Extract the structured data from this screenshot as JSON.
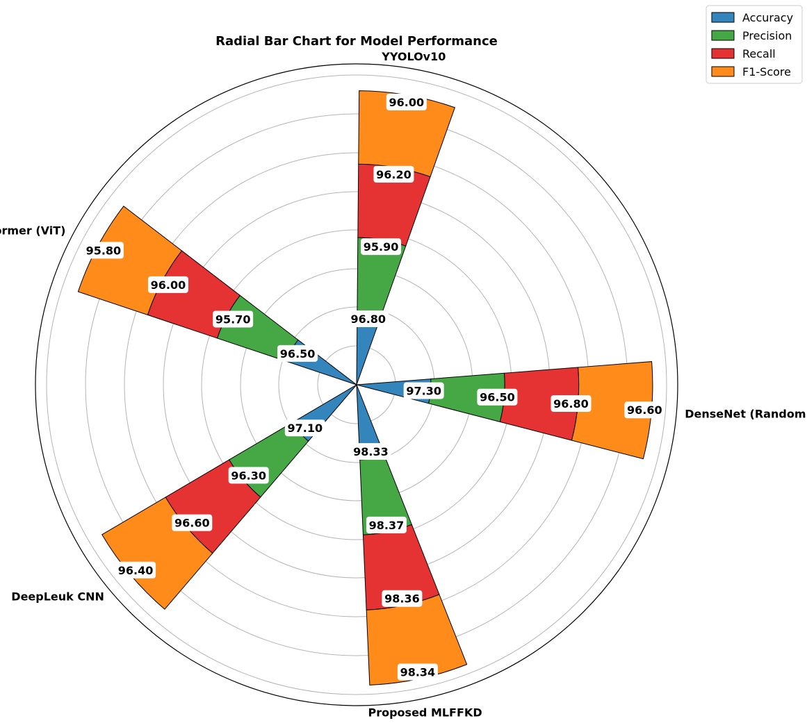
{
  "chart_data": {
    "type": "bar",
    "polar": true,
    "stacked": true,
    "title": "Radial Bar Chart for Model Performance",
    "categories": [
      "DenseNet (Random Search)",
      "YYOLOv10",
      "Vision Transformer (ViT)",
      "DeepLeuk CNN",
      "Proposed MLFFKD"
    ],
    "category_angles_deg": [
      -5,
      80,
      152,
      220,
      282
    ],
    "series": [
      {
        "name": "Accuracy",
        "values": [
          97.3,
          96.8,
          96.5,
          97.1,
          98.33
        ]
      },
      {
        "name": "Precision",
        "values": [
          96.5,
          95.9,
          95.7,
          96.3,
          98.37
        ]
      },
      {
        "name": "Recall",
        "values": [
          96.8,
          96.2,
          96.0,
          96.6,
          98.36
        ]
      },
      {
        "name": "F1-Score",
        "values": [
          96.6,
          96.0,
          95.8,
          96.4,
          98.34
        ]
      }
    ],
    "colors": [
      "#3385bc",
      "#45a845",
      "#e53232",
      "#ff8c1a"
    ],
    "label_format": "2 decimals",
    "grid": true,
    "radial_ticks_shown": false,
    "angular_ticks_shown": false,
    "legend": "top-right"
  }
}
